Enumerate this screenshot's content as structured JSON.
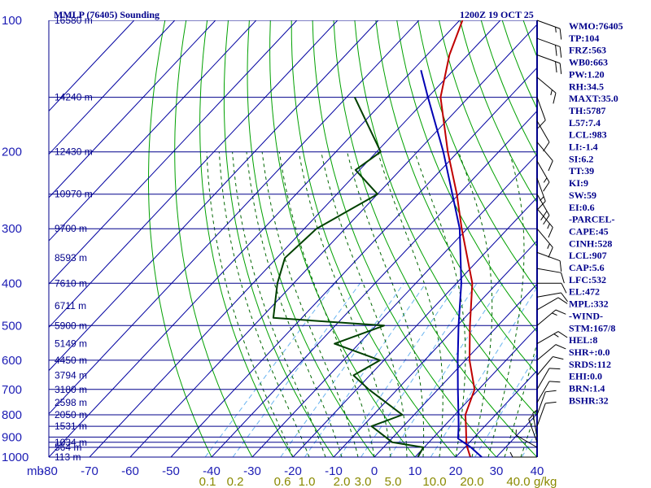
{
  "header": {
    "station": "MMLP (76405) Sounding",
    "time": "1200Z 19 OCT 25"
  },
  "chart_data": {
    "type": "skew-t",
    "title": "MMLP (76405) Sounding",
    "valid_time": "1200Z 19 OCT 25",
    "axis_unit_label": "mb",
    "mixing_ratio_unit": "g/kg",
    "pressure_axis": {
      "range": [
        1000,
        100
      ],
      "ticks": [
        100,
        200,
        300,
        400,
        500,
        600,
        700,
        800,
        900,
        1000
      ],
      "labels": [
        "100",
        "200",
        "300",
        "400",
        "500",
        "600",
        "700",
        "800",
        "900",
        "1000"
      ]
    },
    "temperature_axis": {
      "range": [
        -80,
        40
      ],
      "ticks": [
        -80,
        -70,
        -60,
        -50,
        -40,
        -30,
        -20,
        -10,
        0,
        10,
        20,
        30,
        40
      ],
      "labels": [
        "-80",
        "-70",
        "-60",
        "-50",
        "-40",
        "-30",
        "-20",
        "-10",
        "0",
        "10",
        "20",
        "30",
        "40"
      ]
    },
    "extra_levels": [
      150,
      250,
      850,
      925,
      950
    ],
    "heights": [
      {
        "p": 1000,
        "label": "113 m"
      },
      {
        "p": 950,
        "label": "564 m"
      },
      {
        "p": 925,
        "label": "1034 m"
      },
      {
        "p": 850,
        "label": "1531 m"
      },
      {
        "p": 800,
        "label": "2050 m"
      },
      {
        "p": 750,
        "label": "2598 m"
      },
      {
        "p": 700,
        "label": "3180 m"
      },
      {
        "p": 650,
        "label": "3794 m"
      },
      {
        "p": 600,
        "label": "4450 m"
      },
      {
        "p": 550,
        "label": "5149 m"
      },
      {
        "p": 500,
        "label": "5900 m"
      },
      {
        "p": 450,
        "label": "6711 m"
      },
      {
        "p": 400,
        "label": "7610 m"
      },
      {
        "p": 350,
        "label": "8593 m"
      },
      {
        "p": 300,
        "label": "9700 m"
      },
      {
        "p": 250,
        "label": "10970 m"
      },
      {
        "p": 200,
        "label": "12430 m"
      },
      {
        "p": 150,
        "label": "14240 m"
      },
      {
        "p": 100,
        "label": "16580 m"
      }
    ],
    "mixing_ratio_labels": [
      "0.1",
      "0.2",
      "0.6",
      "1.0",
      "2.0",
      "3.0",
      "5.0",
      "10.0",
      "20.0",
      "40.0"
    ],
    "mixing_ratio_values": [
      0.1,
      0.2,
      0.6,
      1.0,
      2.0,
      3.0,
      5.0,
      10.0,
      20.0,
      40.0
    ],
    "series": [
      {
        "name": "temperature",
        "color": "#c00000",
        "points": [
          {
            "p": 1000,
            "t": 23.6
          },
          {
            "p": 950,
            "t": 20.6
          },
          {
            "p": 925,
            "t": 19.2
          },
          {
            "p": 850,
            "t": 15.4
          },
          {
            "p": 800,
            "t": 12.6
          },
          {
            "p": 700,
            "t": 9.0
          },
          {
            "p": 600,
            "t": 1.0
          },
          {
            "p": 500,
            "t": -6.9
          },
          {
            "p": 400,
            "t": -16.1
          },
          {
            "p": 300,
            "t": -31.3
          },
          {
            "p": 250,
            "t": -40.5
          },
          {
            "p": 200,
            "t": -52.5
          },
          {
            "p": 150,
            "t": -66.9
          },
          {
            "p": 120,
            "t": -74.5
          },
          {
            "p": 100,
            "t": -79.3
          }
        ]
      },
      {
        "name": "dewpoint",
        "color": "#004000",
        "points": [
          {
            "p": 1000,
            "t": 10.7
          },
          {
            "p": 950,
            "t": 9.8
          },
          {
            "p": 925,
            "t": 1.0
          },
          {
            "p": 850,
            "t": -7.8
          },
          {
            "p": 800,
            "t": -2.9
          },
          {
            "p": 700,
            "t": -17.0
          },
          {
            "p": 650,
            "t": -24.0
          },
          {
            "p": 600,
            "t": -21.0
          },
          {
            "p": 550,
            "t": -36.0
          },
          {
            "p": 500,
            "t": -28.0
          },
          {
            "p": 480,
            "t": -57.0
          },
          {
            "p": 400,
            "t": -64.0
          },
          {
            "p": 350,
            "t": -68.0
          },
          {
            "p": 300,
            "t": -67.0
          },
          {
            "p": 250,
            "t": -60.0
          },
          {
            "p": 220,
            "t": -71.0
          },
          {
            "p": 200,
            "t": -69.0
          },
          {
            "p": 150,
            "t": -88.0
          }
        ]
      },
      {
        "name": "parcel",
        "color": "#0000b4",
        "points": [
          {
            "p": 1000,
            "t": 26.4
          },
          {
            "p": 950,
            "t": 21.5
          },
          {
            "p": 907,
            "t": 16.3
          },
          {
            "p": 850,
            "t": 13.6
          },
          {
            "p": 800,
            "t": 10.9
          },
          {
            "p": 700,
            "t": 4.9
          },
          {
            "p": 600,
            "t": -1.9
          },
          {
            "p": 500,
            "t": -9.7
          },
          {
            "p": 400,
            "t": -18.8
          },
          {
            "p": 300,
            "t": -31.8
          },
          {
            "p": 250,
            "t": -41.6
          },
          {
            "p": 200,
            "t": -53.6
          },
          {
            "p": 150,
            "t": -70.0
          },
          {
            "p": 130,
            "t": -78.0
          }
        ]
      }
    ],
    "wind_barbs": [
      {
        "p": 100,
        "dir": 110,
        "spd": 15
      },
      {
        "p": 110,
        "dir": 110,
        "spd": 20
      },
      {
        "p": 120,
        "dir": 110,
        "spd": 20
      },
      {
        "p": 135,
        "dir": 130,
        "spd": 15
      },
      {
        "p": 150,
        "dir": 160,
        "spd": 10
      },
      {
        "p": 170,
        "dir": 150,
        "spd": 10
      },
      {
        "p": 190,
        "dir": 140,
        "spd": 10
      },
      {
        "p": 210,
        "dir": 150,
        "spd": 15
      },
      {
        "p": 230,
        "dir": 160,
        "spd": 15
      },
      {
        "p": 250,
        "dir": 150,
        "spd": 20
      },
      {
        "p": 270,
        "dir": 140,
        "spd": 15
      },
      {
        "p": 300,
        "dir": 140,
        "spd": 15
      },
      {
        "p": 340,
        "dir": 110,
        "spd": 10
      },
      {
        "p": 370,
        "dir": 100,
        "spd": 10
      },
      {
        "p": 400,
        "dir": 90,
        "spd": 10
      },
      {
        "p": 430,
        "dir": 80,
        "spd": 10
      },
      {
        "p": 460,
        "dir": 60,
        "spd": 10
      },
      {
        "p": 500,
        "dir": 50,
        "spd": 15
      },
      {
        "p": 550,
        "dir": 60,
        "spd": 15
      },
      {
        "p": 600,
        "dir": 50,
        "spd": 10
      },
      {
        "p": 650,
        "dir": 40,
        "spd": 10
      },
      {
        "p": 700,
        "dir": 30,
        "spd": 10
      },
      {
        "p": 750,
        "dir": 30,
        "spd": 10
      },
      {
        "p": 800,
        "dir": 20,
        "spd": 10
      },
      {
        "p": 850,
        "dir": 20,
        "spd": 10
      },
      {
        "p": 900,
        "dir": 350,
        "spd": 5
      },
      {
        "p": 925,
        "dir": 340,
        "spd": 5
      },
      {
        "p": 950,
        "dir": 300,
        "spd": 5
      },
      {
        "p": 1000,
        "dir": 270,
        "spd": 5
      }
    ]
  },
  "indices": [
    "WMO:76405",
    "TP:104",
    "FRZ:563",
    "WB0:663",
    "PW:1.20",
    "RH:34.5",
    "MAXT:35.0",
    "TH:5787",
    "L57:7.4",
    "LCL:983",
    "LI:-1.4",
    "SI:6.2",
    "TT:39",
    "KI:9",
    "SW:59",
    "EI:0.6",
    "-PARCEL-",
    "CAPE:45",
    "CINH:528",
    "LCL:907",
    "CAP:5.6",
    "LFC:532",
    "EL:472",
    "MPL:332",
    "-WIND-",
    "STM:167/8",
    "HEL:8",
    "SHR+:0.0",
    "SRDS:112",
    "EHI:0.0",
    "BRN:1.4",
    "BSHR:32"
  ],
  "colors": {
    "isobar": "#00008b",
    "isotherm": "#0000a0",
    "dry_adiabat": "#00a000",
    "moist_adiabat": "#006600",
    "mixing_ratio": "#6ab4f0",
    "temperature": "#c00000",
    "dewpoint": "#004000",
    "parcel": "#0000b4"
  }
}
